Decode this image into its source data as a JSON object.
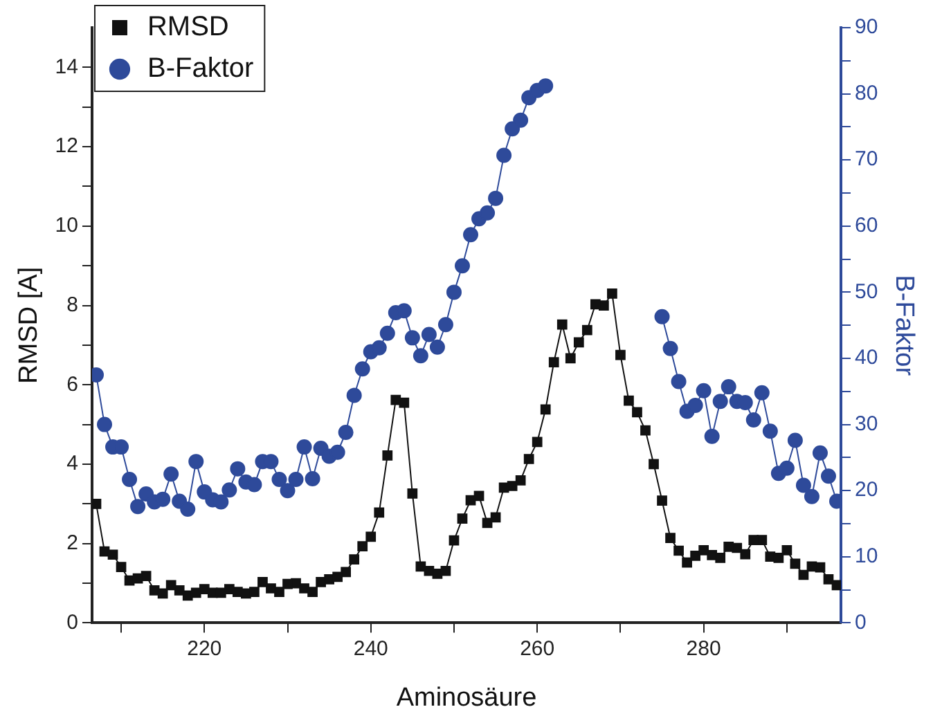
{
  "chart_data": {
    "type": "line",
    "xlabel": "Aminosäure",
    "ylabel": "RMSD [A]",
    "y2label": "B-Faktor",
    "x": [
      207,
      208,
      209,
      210,
      211,
      212,
      213,
      214,
      215,
      216,
      217,
      218,
      219,
      220,
      221,
      222,
      223,
      224,
      225,
      226,
      227,
      228,
      229,
      230,
      231,
      232,
      233,
      234,
      235,
      236,
      237,
      238,
      239,
      240,
      241,
      242,
      243,
      244,
      245,
      246,
      247,
      248,
      249,
      250,
      251,
      252,
      253,
      254,
      255,
      256,
      257,
      258,
      259,
      260,
      261,
      262,
      263,
      264,
      265,
      266,
      267,
      268,
      269,
      270,
      271,
      272,
      273,
      274,
      275,
      276,
      277,
      278,
      279,
      280,
      281,
      282,
      283,
      284,
      285,
      286,
      287,
      288,
      289,
      290,
      291,
      292,
      293,
      294,
      295,
      296
    ],
    "xlim": [
      206.5,
      296.5
    ],
    "xticks": [
      {
        "value": 210,
        "label": null
      },
      220,
      {
        "value": 230,
        "label": null
      },
      240,
      {
        "value": 250,
        "label": null
      },
      260,
      {
        "value": 270,
        "label": null
      },
      280,
      {
        "value": 290,
        "label": null
      }
    ],
    "ylim": [
      0,
      15
    ],
    "yticks": [
      0,
      {
        "value": 1,
        "label": null
      },
      2,
      {
        "value": 3,
        "label": null
      },
      4,
      {
        "value": 5,
        "label": null
      },
      6,
      {
        "value": 7,
        "label": null
      },
      8,
      {
        "value": 9,
        "label": null
      },
      10,
      {
        "value": 11,
        "label": null
      },
      12,
      {
        "value": 13,
        "label": null
      },
      14
    ],
    "y2lim": [
      0,
      90
    ],
    "y2ticks": [
      0,
      {
        "value": 5,
        "label": null
      },
      10,
      {
        "value": 15,
        "label": null
      },
      20,
      {
        "value": 25,
        "label": null
      },
      30,
      {
        "value": 35,
        "label": null
      },
      40,
      {
        "value": 45,
        "label": null
      },
      50,
      {
        "value": 55,
        "label": null
      },
      60,
      {
        "value": 65,
        "label": null
      },
      70,
      {
        "value": 75,
        "label": null
      },
      80,
      {
        "value": 85,
        "label": null
      },
      90
    ],
    "grid": false,
    "legend": "top left",
    "line_style": "solid",
    "series": [
      {
        "name": "RMSD",
        "color": "#111111",
        "marker": "square",
        "values": [
          3.0,
          1.8,
          1.72,
          1.41,
          1.07,
          1.12,
          1.18,
          0.82,
          0.74,
          0.95,
          0.82,
          0.69,
          0.76,
          0.85,
          0.76,
          0.76,
          0.85,
          0.78,
          0.74,
          0.78,
          1.03,
          0.87,
          0.78,
          0.98,
          1.0,
          0.87,
          0.78,
          1.03,
          1.1,
          1.16,
          1.28,
          1.6,
          1.93,
          2.17,
          2.78,
          4.22,
          5.62,
          5.55,
          3.26,
          1.42,
          1.31,
          1.24,
          1.31,
          2.08,
          2.63,
          3.09,
          3.2,
          2.52,
          2.66,
          3.41,
          3.45,
          3.59,
          4.13,
          4.56,
          5.38,
          6.57,
          7.52,
          6.67,
          7.07,
          7.38,
          8.03,
          8.0,
          8.3,
          6.75,
          5.6,
          5.31,
          4.85,
          4.0,
          3.08,
          2.14,
          1.82,
          1.52,
          1.69,
          1.83,
          1.71,
          1.64,
          1.92,
          1.89,
          1.73,
          2.09,
          2.09,
          1.67,
          1.64,
          1.83,
          1.49,
          1.21,
          1.42,
          1.4,
          1.1,
          0.95
        ]
      },
      {
        "name": "B-Faktor",
        "color": "#2e4a9a",
        "marker": "circle",
        "axis": "y2",
        "values": [
          37.5,
          30.0,
          26.6,
          26.6,
          21.7,
          17.6,
          19.5,
          18.3,
          18.7,
          22.5,
          18.4,
          17.2,
          24.4,
          19.8,
          18.6,
          18.3,
          20.1,
          23.3,
          21.3,
          20.9,
          24.4,
          24.4,
          21.7,
          20.0,
          21.7,
          26.6,
          21.8,
          26.4,
          25.2,
          25.8,
          28.8,
          34.4,
          38.4,
          41.0,
          41.6,
          43.8,
          46.9,
          47.2,
          43.1,
          40.4,
          43.6,
          41.7,
          45.1,
          50.0,
          54.0,
          58.7,
          61.1,
          62.0,
          64.2,
          70.7,
          74.7,
          76.0,
          79.4,
          80.5,
          81.2,
          null,
          null,
          null,
          null,
          null,
          null,
          null,
          null,
          null,
          null,
          null,
          null,
          null,
          46.3,
          41.5,
          36.5,
          32.0,
          32.9,
          35.1,
          28.2,
          33.5,
          35.7,
          33.5,
          33.3,
          30.7,
          34.8,
          29.0,
          22.6,
          23.4,
          27.6,
          20.8,
          19.1,
          25.7,
          22.2,
          18.4
        ]
      }
    ]
  }
}
